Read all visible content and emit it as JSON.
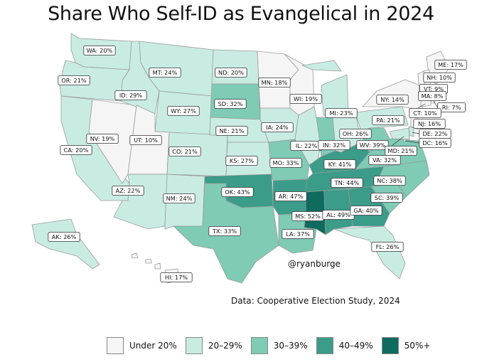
{
  "title": "Share Who Self-ID as Evangelical in 2024",
  "credit": "@ryanburge",
  "source": "Data: Cooperative Election Study, 2024",
  "colors": {
    "under20": "#f5f5f5",
    "20to29": "#c9ece2",
    "30to39": "#7fcbb6",
    "40to49": "#3a9c89",
    "50plus": "#0e6b5e",
    "border": "#9a9a9a"
  },
  "legend": [
    {
      "label": "Under 20%",
      "color": "#f5f5f5"
    },
    {
      "label": "20–29%",
      "color": "#c9ece2"
    },
    {
      "label": "30–39%",
      "color": "#7fcbb6"
    },
    {
      "label": "40–49%",
      "color": "#3a9c89"
    },
    {
      "label": "50%+",
      "color": "#0e6b5e"
    }
  ],
  "states": {
    "WA": "WA: 20%",
    "OR": "OR: 21%",
    "CA": "CA: 20%",
    "NV": "NV: 19%",
    "ID": "ID: 29%",
    "MT": "MT: 24%",
    "WY": "WY: 27%",
    "UT": "UT: 10%",
    "CO": "CO: 21%",
    "AZ": "AZ: 22%",
    "NM": "NM: 24%",
    "ND": "ND: 20%",
    "SD": "SD: 32%",
    "NE": "NE: 21%",
    "KS": "KS: 27%",
    "OK": "OK: 43%",
    "TX": "TX: 33%",
    "MN": "MN: 18%",
    "IA": "IA: 24%",
    "MO": "MO: 33%",
    "AR": "AR: 47%",
    "LA": "LA: 37%",
    "WI": "WI: 19%",
    "IL": "IL: 22%",
    "MI": "MI: 23%",
    "IN": "IN: 32%",
    "OH": "OH: 26%",
    "KY": "KY: 41%",
    "TN": "TN: 44%",
    "MS": "MS: 52%",
    "AL": "AL: 49%",
    "GA": "GA: 40%",
    "FL": "FL: 26%",
    "SC": "SC: 39%",
    "NC": "NC: 38%",
    "VA": "VA: 32%",
    "WV": "WV: 39%",
    "PA": "PA: 21%",
    "NY": "NY: 14%",
    "ME": "ME: 17%",
    "NH": "NH: 10%",
    "VT": "VT: 9%",
    "MA": "MA: 8%",
    "RI": "RI: 7%",
    "CT": "CT: 10%",
    "NJ": "NJ: 16%",
    "DE": "DE: 22%",
    "MD": "MD: 21%",
    "DC": "DC: 16%",
    "AK": "AK: 26%",
    "HI": "HI: 17%"
  }
}
